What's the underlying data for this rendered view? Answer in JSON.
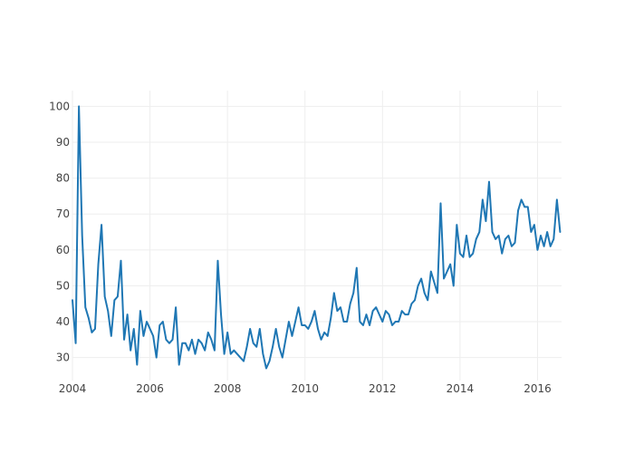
{
  "chart_data": {
    "type": "line",
    "title": "",
    "xlabel": "",
    "ylabel": "",
    "x_ticks": [
      "2004",
      "2006",
      "2008",
      "2010",
      "2012",
      "2014",
      "2016"
    ],
    "y_ticks": [
      30,
      40,
      50,
      60,
      70,
      80,
      90,
      100
    ],
    "xlim": [
      2004.0,
      2016.62
    ],
    "ylim": [
      23.6,
      104.4
    ],
    "grid": true,
    "legend": "none",
    "series": [
      {
        "color": "#1f77b4",
        "start_year": 2004,
        "start_month": 1,
        "values": [
          46,
          34,
          100,
          64,
          44,
          41,
          37,
          38,
          56,
          67,
          47,
          43,
          36,
          46,
          47,
          57,
          35,
          42,
          32,
          38,
          28,
          43,
          36,
          40,
          38,
          36,
          30,
          39,
          40,
          35,
          34,
          35,
          44,
          28,
          34,
          34,
          32,
          35,
          31,
          35,
          34,
          32,
          37,
          35,
          32,
          57,
          42,
          31,
          37,
          31,
          32,
          31,
          30,
          29,
          33,
          38,
          34,
          33,
          38,
          31,
          27,
          29,
          33,
          38,
          33,
          30,
          35,
          40,
          36,
          40,
          44,
          39,
          39,
          38,
          40,
          43,
          38,
          35,
          37,
          36,
          41,
          48,
          43,
          44,
          40,
          40,
          45,
          48,
          55,
          40,
          39,
          42,
          39,
          43,
          44,
          42,
          40,
          43,
          42,
          39,
          40,
          40,
          43,
          42,
          42,
          45,
          46,
          50,
          52,
          48,
          46,
          54,
          51,
          48,
          73,
          52,
          54,
          56,
          50,
          67,
          59,
          58,
          64,
          58,
          59,
          63,
          65,
          74,
          68,
          79,
          65,
          63,
          64,
          59,
          63,
          64,
          61,
          62,
          71,
          74,
          72,
          72,
          65,
          67,
          60,
          64,
          61,
          65,
          61,
          63,
          74,
          65
        ]
      }
    ]
  }
}
